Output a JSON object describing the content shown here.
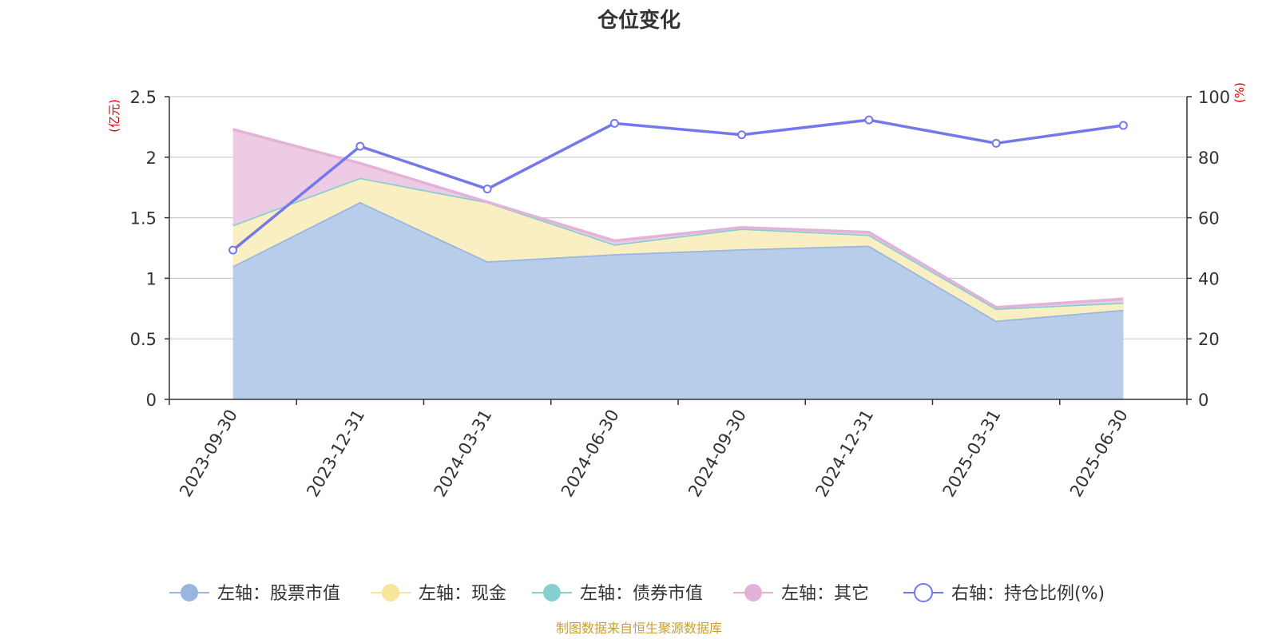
{
  "chart_data": {
    "type": "area",
    "title": "仓位变化",
    "categories": [
      "2023-09-30",
      "2023-12-31",
      "2024-03-31",
      "2024-06-30",
      "2024-09-30",
      "2024-12-31",
      "2025-03-31",
      "2025-06-30"
    ],
    "left_axis": {
      "unit": "(亿元)",
      "ylim": [
        0,
        2.5
      ],
      "ticks": [
        "0",
        "0.5",
        "1",
        "1.5",
        "2",
        "2.5"
      ]
    },
    "right_axis": {
      "unit": "(%)",
      "ylim": [
        0,
        100
      ],
      "ticks": [
        "0",
        "20",
        "40",
        "60",
        "80",
        "100"
      ]
    },
    "stacked": true,
    "grid": true,
    "legend_position": "bottom",
    "series": [
      {
        "name": "左轴：股票市值",
        "axis": "left",
        "type": "area",
        "color": "#9ab5df",
        "fill": "#b8cdea",
        "values": [
          1.1,
          1.63,
          1.14,
          1.2,
          1.24,
          1.27,
          0.65,
          0.74
        ]
      },
      {
        "name": "左轴：现金",
        "axis": "left",
        "type": "area",
        "color": "#f7e59c",
        "fill": "#faefc2",
        "values": [
          0.34,
          0.2,
          0.49,
          0.08,
          0.17,
          0.09,
          0.1,
          0.06
        ]
      },
      {
        "name": "左轴：债券市值",
        "axis": "left",
        "type": "area",
        "color": "#88cfd2",
        "fill": "#a8dde0",
        "values": [
          0,
          0,
          0,
          0,
          0,
          0,
          0,
          0
        ]
      },
      {
        "name": "左轴：其它",
        "axis": "left",
        "type": "area",
        "color": "#e3b2d8",
        "fill": "#edcbe5",
        "values": [
          0.79,
          0.12,
          0.0,
          0.03,
          0.01,
          0.02,
          0.01,
          0.03
        ]
      },
      {
        "name": "右轴：持仓比例(%)",
        "axis": "right",
        "type": "line",
        "color": "#7379ea",
        "values": [
          49.3,
          83.6,
          69.5,
          91.2,
          87.4,
          92.3,
          84.6,
          90.5
        ]
      }
    ],
    "source": "制图数据来自恒生聚源数据库"
  }
}
